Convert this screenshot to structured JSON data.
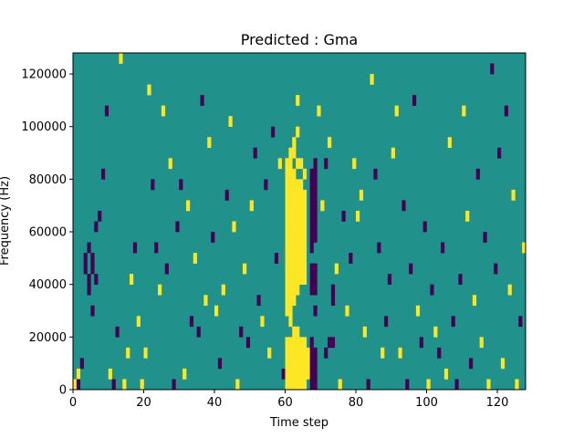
{
  "chart_data": {
    "type": "heatmap",
    "title": "Predicted : Gma",
    "xlabel": "Time step",
    "ylabel": "Frequency (Hz)",
    "xlim": [
      0,
      128
    ],
    "ylim": [
      0,
      128000
    ],
    "x_ticks": [
      0,
      20,
      40,
      60,
      80,
      100,
      120
    ],
    "y_ticks": [
      0,
      20000,
      40000,
      60000,
      80000,
      100000,
      120000
    ],
    "y_tick_labels": [
      "0",
      "20000",
      "40000",
      "60000",
      "80000",
      "100000",
      "120000"
    ],
    "background_value": 0,
    "value_levels": [
      -1,
      0,
      1
    ],
    "colors": {
      "low": "#440154",
      "mid": "#21918c",
      "high": "#fde725"
    },
    "grid": false,
    "legend": "none",
    "cell_width_steps": 1,
    "cell_height_hz": 4000,
    "cells": [
      [
        0,
        0,
        1
      ],
      [
        1,
        4000,
        1
      ],
      [
        1,
        0,
        -1
      ],
      [
        2,
        8000,
        -1
      ],
      [
        3,
        44000,
        -1
      ],
      [
        3,
        48000,
        -1
      ],
      [
        4,
        36000,
        -1
      ],
      [
        4,
        40000,
        -1
      ],
      [
        4,
        52000,
        -1
      ],
      [
        5,
        28000,
        -1
      ],
      [
        5,
        44000,
        -1
      ],
      [
        5,
        48000,
        -1
      ],
      [
        6,
        40000,
        -1
      ],
      [
        6,
        60000,
        -1
      ],
      [
        7,
        64000,
        -1
      ],
      [
        8,
        80000,
        -1
      ],
      [
        9,
        104000,
        -1
      ],
      [
        10,
        4000,
        1
      ],
      [
        11,
        0,
        -1
      ],
      [
        12,
        20000,
        -1
      ],
      [
        13,
        124000,
        1
      ],
      [
        14,
        0,
        1
      ],
      [
        15,
        12000,
        1
      ],
      [
        16,
        40000,
        1
      ],
      [
        17,
        52000,
        -1
      ],
      [
        18,
        24000,
        1
      ],
      [
        19,
        0,
        1
      ],
      [
        20,
        12000,
        1
      ],
      [
        21,
        112000,
        1
      ],
      [
        22,
        76000,
        -1
      ],
      [
        23,
        52000,
        -1
      ],
      [
        24,
        36000,
        1
      ],
      [
        25,
        104000,
        1
      ],
      [
        26,
        44000,
        -1
      ],
      [
        27,
        84000,
        1
      ],
      [
        28,
        0,
        -1
      ],
      [
        29,
        60000,
        -1
      ],
      [
        30,
        76000,
        -1
      ],
      [
        31,
        4000,
        1
      ],
      [
        32,
        68000,
        1
      ],
      [
        33,
        24000,
        -1
      ],
      [
        34,
        48000,
        1
      ],
      [
        35,
        20000,
        -1
      ],
      [
        36,
        108000,
        -1
      ],
      [
        37,
        32000,
        1
      ],
      [
        38,
        92000,
        1
      ],
      [
        39,
        56000,
        -1
      ],
      [
        40,
        28000,
        1
      ],
      [
        41,
        8000,
        -1
      ],
      [
        42,
        36000,
        1
      ],
      [
        43,
        72000,
        -1
      ],
      [
        44,
        100000,
        1
      ],
      [
        45,
        60000,
        1
      ],
      [
        46,
        0,
        1
      ],
      [
        47,
        20000,
        -1
      ],
      [
        48,
        44000,
        1
      ],
      [
        49,
        16000,
        -1
      ],
      [
        50,
        68000,
        1
      ],
      [
        51,
        88000,
        -1
      ],
      [
        52,
        32000,
        -1
      ],
      [
        53,
        24000,
        1
      ],
      [
        54,
        76000,
        -1
      ],
      [
        55,
        12000,
        1
      ],
      [
        56,
        96000,
        -1
      ],
      [
        57,
        48000,
        -1
      ],
      [
        58,
        84000,
        1
      ],
      [
        59,
        4000,
        -1
      ],
      [
        60,
        0,
        1
      ],
      [
        60,
        4000,
        1
      ],
      [
        60,
        8000,
        1
      ],
      [
        60,
        12000,
        1
      ],
      [
        60,
        16000,
        1
      ],
      [
        60,
        28000,
        1
      ],
      [
        60,
        32000,
        1
      ],
      [
        60,
        36000,
        1
      ],
      [
        60,
        40000,
        1
      ],
      [
        60,
        44000,
        1
      ],
      [
        60,
        48000,
        1
      ],
      [
        60,
        52000,
        1
      ],
      [
        60,
        56000,
        1
      ],
      [
        60,
        60000,
        1
      ],
      [
        60,
        64000,
        1
      ],
      [
        60,
        68000,
        1
      ],
      [
        60,
        72000,
        1
      ],
      [
        60,
        76000,
        1
      ],
      [
        60,
        80000,
        1
      ],
      [
        60,
        84000,
        1
      ],
      [
        61,
        0,
        1
      ],
      [
        61,
        4000,
        1
      ],
      [
        61,
        8000,
        1
      ],
      [
        61,
        12000,
        1
      ],
      [
        61,
        16000,
        1
      ],
      [
        61,
        24000,
        1
      ],
      [
        61,
        28000,
        1
      ],
      [
        61,
        32000,
        1
      ],
      [
        61,
        36000,
        1
      ],
      [
        61,
        40000,
        1
      ],
      [
        61,
        44000,
        1
      ],
      [
        61,
        48000,
        1
      ],
      [
        61,
        52000,
        1
      ],
      [
        61,
        56000,
        1
      ],
      [
        61,
        60000,
        1
      ],
      [
        61,
        64000,
        1
      ],
      [
        61,
        68000,
        1
      ],
      [
        61,
        72000,
        1
      ],
      [
        61,
        76000,
        1
      ],
      [
        61,
        80000,
        1
      ],
      [
        61,
        84000,
        1
      ],
      [
        61,
        88000,
        1
      ],
      [
        62,
        0,
        1
      ],
      [
        62,
        4000,
        1
      ],
      [
        62,
        8000,
        1
      ],
      [
        62,
        12000,
        1
      ],
      [
        62,
        16000,
        1
      ],
      [
        62,
        20000,
        1
      ],
      [
        62,
        32000,
        1
      ],
      [
        62,
        36000,
        1
      ],
      [
        62,
        40000,
        1
      ],
      [
        62,
        44000,
        1
      ],
      [
        62,
        48000,
        1
      ],
      [
        62,
        52000,
        1
      ],
      [
        62,
        56000,
        1
      ],
      [
        62,
        60000,
        1
      ],
      [
        62,
        64000,
        1
      ],
      [
        62,
        68000,
        1
      ],
      [
        62,
        72000,
        1
      ],
      [
        62,
        76000,
        1
      ],
      [
        62,
        80000,
        1
      ],
      [
        62,
        88000,
        1
      ],
      [
        62,
        92000,
        1
      ],
      [
        63,
        0,
        1
      ],
      [
        63,
        4000,
        1
      ],
      [
        63,
        8000,
        1
      ],
      [
        63,
        12000,
        1
      ],
      [
        63,
        16000,
        1
      ],
      [
        63,
        20000,
        1
      ],
      [
        63,
        36000,
        1
      ],
      [
        63,
        40000,
        1
      ],
      [
        63,
        44000,
        1
      ],
      [
        63,
        48000,
        1
      ],
      [
        63,
        52000,
        1
      ],
      [
        63,
        56000,
        1
      ],
      [
        63,
        60000,
        1
      ],
      [
        63,
        64000,
        1
      ],
      [
        63,
        68000,
        1
      ],
      [
        63,
        72000,
        1
      ],
      [
        63,
        76000,
        1
      ],
      [
        63,
        84000,
        1
      ],
      [
        63,
        96000,
        1
      ],
      [
        63,
        108000,
        1
      ],
      [
        64,
        0,
        1
      ],
      [
        64,
        4000,
        1
      ],
      [
        64,
        8000,
        1
      ],
      [
        64,
        12000,
        1
      ],
      [
        64,
        16000,
        1
      ],
      [
        64,
        40000,
        1
      ],
      [
        64,
        44000,
        1
      ],
      [
        64,
        48000,
        1
      ],
      [
        64,
        52000,
        1
      ],
      [
        64,
        56000,
        1
      ],
      [
        64,
        60000,
        1
      ],
      [
        64,
        64000,
        1
      ],
      [
        64,
        68000,
        1
      ],
      [
        64,
        72000,
        1
      ],
      [
        64,
        76000,
        1
      ],
      [
        64,
        84000,
        1
      ],
      [
        65,
        0,
        1
      ],
      [
        65,
        4000,
        1
      ],
      [
        65,
        8000,
        1
      ],
      [
        65,
        12000,
        1
      ],
      [
        65,
        16000,
        1
      ],
      [
        65,
        40000,
        1
      ],
      [
        65,
        44000,
        1
      ],
      [
        65,
        48000,
        1
      ],
      [
        65,
        52000,
        1
      ],
      [
        65,
        56000,
        1
      ],
      [
        65,
        60000,
        1
      ],
      [
        65,
        64000,
        1
      ],
      [
        65,
        68000,
        1
      ],
      [
        65,
        72000,
        1
      ],
      [
        65,
        80000,
        1
      ],
      [
        66,
        4000,
        1
      ],
      [
        66,
        8000,
        1
      ],
      [
        66,
        12000,
        1
      ],
      [
        67,
        0,
        -1
      ],
      [
        67,
        4000,
        -1
      ],
      [
        67,
        8000,
        -1
      ],
      [
        67,
        12000,
        -1
      ],
      [
        67,
        16000,
        -1
      ],
      [
        67,
        36000,
        -1
      ],
      [
        67,
        40000,
        -1
      ],
      [
        67,
        44000,
        -1
      ],
      [
        67,
        52000,
        -1
      ],
      [
        67,
        56000,
        -1
      ],
      [
        67,
        60000,
        -1
      ],
      [
        67,
        64000,
        -1
      ],
      [
        67,
        68000,
        -1
      ],
      [
        67,
        72000,
        -1
      ],
      [
        67,
        76000,
        -1
      ],
      [
        67,
        80000,
        -1
      ],
      [
        68,
        0,
        -1
      ],
      [
        68,
        4000,
        -1
      ],
      [
        68,
        8000,
        -1
      ],
      [
        68,
        12000,
        -1
      ],
      [
        68,
        28000,
        -1
      ],
      [
        68,
        36000,
        -1
      ],
      [
        68,
        40000,
        -1
      ],
      [
        68,
        44000,
        -1
      ],
      [
        68,
        56000,
        -1
      ],
      [
        68,
        60000,
        -1
      ],
      [
        68,
        64000,
        -1
      ],
      [
        68,
        68000,
        -1
      ],
      [
        68,
        72000,
        -1
      ],
      [
        68,
        76000,
        -1
      ],
      [
        68,
        80000,
        -1
      ],
      [
        68,
        84000,
        -1
      ],
      [
        69,
        104000,
        1
      ],
      [
        70,
        68000,
        1
      ],
      [
        71,
        84000,
        -1
      ],
      [
        71,
        12000,
        -1
      ],
      [
        72,
        16000,
        -1
      ],
      [
        72,
        92000,
        1
      ],
      [
        73,
        16000,
        -1
      ],
      [
        73,
        36000,
        -1
      ],
      [
        73,
        32000,
        -1
      ],
      [
        74,
        44000,
        1
      ],
      [
        75,
        0,
        1
      ],
      [
        76,
        64000,
        -1
      ],
      [
        77,
        28000,
        1
      ],
      [
        78,
        48000,
        -1
      ],
      [
        79,
        84000,
        1
      ],
      [
        80,
        64000,
        1
      ],
      [
        81,
        72000,
        1
      ],
      [
        82,
        20000,
        1
      ],
      [
        83,
        0,
        -1
      ],
      [
        84,
        116000,
        1
      ],
      [
        85,
        80000,
        -1
      ],
      [
        86,
        52000,
        -1
      ],
      [
        87,
        12000,
        1
      ],
      [
        88,
        24000,
        -1
      ],
      [
        89,
        40000,
        -1
      ],
      [
        90,
        88000,
        1
      ],
      [
        91,
        104000,
        1
      ],
      [
        92,
        12000,
        1
      ],
      [
        93,
        68000,
        -1
      ],
      [
        94,
        0,
        -1
      ],
      [
        95,
        44000,
        -1
      ],
      [
        96,
        108000,
        -1
      ],
      [
        97,
        28000,
        1
      ],
      [
        98,
        16000,
        -1
      ],
      [
        99,
        60000,
        -1
      ],
      [
        100,
        0,
        1
      ],
      [
        101,
        36000,
        -1
      ],
      [
        102,
        20000,
        1
      ],
      [
        103,
        12000,
        -1
      ],
      [
        104,
        52000,
        -1
      ],
      [
        105,
        4000,
        1
      ],
      [
        106,
        92000,
        1
      ],
      [
        107,
        24000,
        -1
      ],
      [
        108,
        0,
        -1
      ],
      [
        109,
        40000,
        -1
      ],
      [
        110,
        104000,
        1
      ],
      [
        111,
        64000,
        1
      ],
      [
        112,
        8000,
        -1
      ],
      [
        113,
        32000,
        1
      ],
      [
        114,
        80000,
        -1
      ],
      [
        115,
        16000,
        1
      ],
      [
        116,
        56000,
        -1
      ],
      [
        117,
        0,
        1
      ],
      [
        118,
        120000,
        -1
      ],
      [
        119,
        44000,
        -1
      ],
      [
        120,
        88000,
        -1
      ],
      [
        121,
        8000,
        1
      ],
      [
        122,
        104000,
        -1
      ],
      [
        123,
        36000,
        1
      ],
      [
        124,
        72000,
        1
      ],
      [
        125,
        0,
        1
      ],
      [
        126,
        24000,
        -1
      ],
      [
        127,
        52000,
        1
      ]
    ]
  }
}
